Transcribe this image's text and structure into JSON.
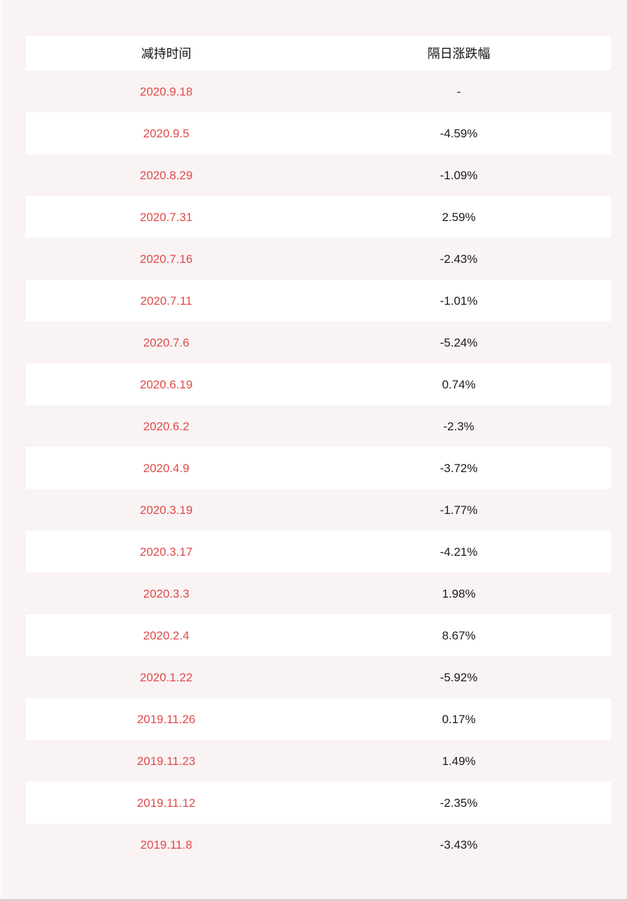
{
  "page": {
    "background_color": "#f9f3f4",
    "row_white_color": "#ffffff",
    "date_red_color": "#e04949",
    "text_color": "#1a1a1a",
    "bottom_edge_color": "#d6d2d3"
  },
  "chart_data": {
    "type": "table",
    "title": "",
    "columns": [
      "减持时间",
      "隔日涨跌幅"
    ],
    "rows": [
      [
        "2020.9.18",
        "-"
      ],
      [
        "2020.9.5",
        "-4.59%"
      ],
      [
        "2020.8.29",
        "-1.09%"
      ],
      [
        "2020.7.31",
        "2.59%"
      ],
      [
        "2020.7.16",
        "-2.43%"
      ],
      [
        "2020.7.11",
        "-1.01%"
      ],
      [
        "2020.7.6",
        "-5.24%"
      ],
      [
        "2020.6.19",
        "0.74%"
      ],
      [
        "2020.6.2",
        "-2.3%"
      ],
      [
        "2020.4.9",
        "-3.72%"
      ],
      [
        "2020.3.19",
        "-1.77%"
      ],
      [
        "2020.3.17",
        "-4.21%"
      ],
      [
        "2020.3.3",
        "1.98%"
      ],
      [
        "2020.2.4",
        "8.67%"
      ],
      [
        "2020.1.22",
        "-5.92%"
      ],
      [
        "2019.11.26",
        "0.17%"
      ],
      [
        "2019.11.23",
        "1.49%"
      ],
      [
        "2019.11.12",
        "-2.35%"
      ],
      [
        "2019.11.8",
        "-3.43%"
      ]
    ],
    "layout": {
      "striping": "odd data rows match page pink background, even data rows white",
      "date_column_color": "red",
      "change_column_color": "black"
    }
  }
}
